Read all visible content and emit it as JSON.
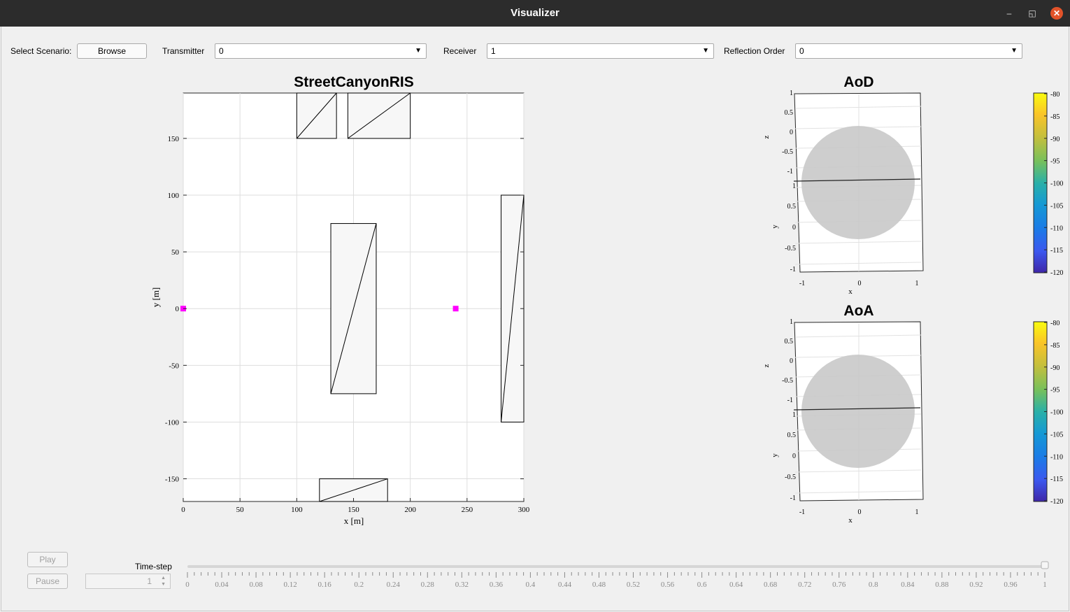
{
  "window": {
    "title": "Visualizer"
  },
  "toolbar": {
    "scenario_label": "Select Scenario:",
    "browse_label": "Browse",
    "transmitter_label": "Transmitter",
    "transmitter_value": "0",
    "receiver_label": "Receiver",
    "receiver_value": "1",
    "reflection_label": "Reflection Order",
    "reflection_value": "0"
  },
  "map": {
    "title": "StreetCanyonRIS",
    "xlabel": "x [m]",
    "ylabel": "y [m]",
    "xlim": [
      0,
      300
    ],
    "ylim": [
      -170,
      190
    ],
    "xticks": [
      0,
      50,
      100,
      150,
      200,
      250,
      300
    ],
    "yticks": [
      -150,
      -100,
      -50,
      0,
      50,
      100,
      150
    ],
    "buildings": [
      {
        "x0": 100,
        "x1": 135,
        "y0": 150,
        "y1": 190
      },
      {
        "x0": 145,
        "x1": 200,
        "y0": 150,
        "y1": 190
      },
      {
        "x0": 130,
        "x1": 170,
        "y0": -75,
        "y1": 75
      },
      {
        "x0": 280,
        "x1": 300,
        "y0": -100,
        "y1": 100
      },
      {
        "x0": 120,
        "x1": 180,
        "y0": -170,
        "y1": -150
      }
    ],
    "nodes": [
      {
        "x": 0,
        "y": 0
      },
      {
        "x": 240,
        "y": 0
      }
    ],
    "marker_color": "#ff00ff"
  },
  "aod": {
    "title": "AoD",
    "z_ticks": [
      "1",
      "0.5",
      "0",
      "-0.5",
      "-1"
    ],
    "y_ticks": [
      "1",
      "0.5",
      "0",
      "-0.5",
      "-1"
    ],
    "x_ticks": [
      "-1",
      "0",
      "1"
    ],
    "zlabel": "z",
    "ylabel": "y",
    "xlabel": "x",
    "colorbar_ticks": [
      "-80",
      "-85",
      "-90",
      "-95",
      "-100",
      "-105",
      "-110",
      "-115",
      "-120"
    ]
  },
  "aoa": {
    "title": "AoA",
    "z_ticks": [
      "1",
      "0.5",
      "0",
      "-0.5",
      "-1"
    ],
    "y_ticks": [
      "1",
      "0.5",
      "0",
      "-0.5",
      "-1"
    ],
    "x_ticks": [
      "-1",
      "0",
      "1"
    ],
    "zlabel": "z",
    "ylabel": "y",
    "xlabel": "x",
    "colorbar_ticks": [
      "-80",
      "-85",
      "-90",
      "-95",
      "-100",
      "-105",
      "-110",
      "-115",
      "-120"
    ]
  },
  "controls": {
    "play_label": "Play",
    "pause_label": "Pause",
    "timestep_label": "Time-step",
    "timestep_value": "1",
    "slider_value": 1,
    "slider_ticks": [
      "0",
      "0.04",
      "0.08",
      "0.12",
      "0.16",
      "0.2",
      "0.24",
      "0.28",
      "0.32",
      "0.36",
      "0.4",
      "0.44",
      "0.48",
      "0.52",
      "0.56",
      "0.6",
      "0.64",
      "0.68",
      "0.72",
      "0.76",
      "0.8",
      "0.84",
      "0.88",
      "0.92",
      "0.96",
      "1"
    ]
  }
}
